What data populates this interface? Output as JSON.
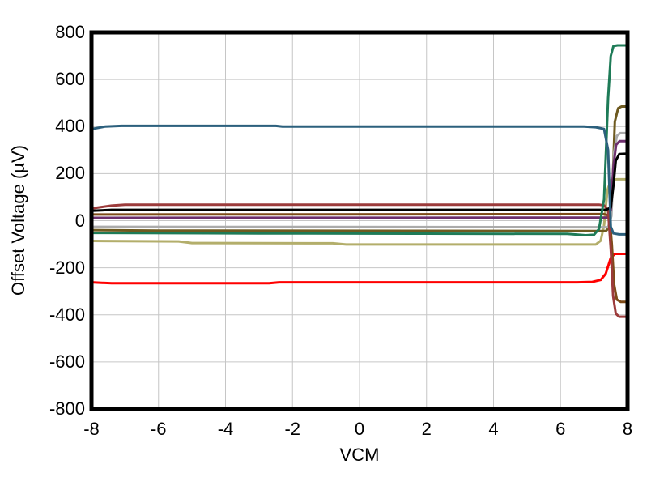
{
  "figure": {
    "background": "#ffffff"
  },
  "chart_data": {
    "type": "line",
    "xlabel": "VCM",
    "ylabel": "Offset Voltage (µV)",
    "xlim": [
      -8,
      8
    ],
    "ylim": [
      -800,
      800
    ],
    "x_ticks": [
      -8,
      -6,
      -4,
      -2,
      0,
      2,
      4,
      6,
      8
    ],
    "y_ticks": [
      800,
      600,
      400,
      200,
      0,
      -200,
      -400,
      -600,
      -800
    ],
    "grid": true,
    "grid_color": "#c6c6c6",
    "frame_color": "#000000",
    "legend": "none",
    "line_width": 3,
    "series": [
      {
        "name": "khaki",
        "color": "#b3ae6b",
        "flat_level": -95,
        "final_value": 176,
        "points": [
          [
            -8,
            -86
          ],
          [
            -5.4,
            -88
          ],
          [
            -5.0,
            -95
          ],
          [
            -0.8,
            -96
          ],
          [
            -0.4,
            -101
          ],
          [
            7.05,
            -101
          ],
          [
            7.2,
            -85
          ],
          [
            7.3,
            -20
          ],
          [
            7.4,
            130
          ],
          [
            7.5,
            172
          ],
          [
            7.65,
            176
          ],
          [
            8,
            176
          ]
        ]
      },
      {
        "name": "darkolive",
        "color": "#6e5a20",
        "flat_level": -42,
        "final_value": 485,
        "points": [
          [
            -8,
            -40
          ],
          [
            -6,
            -42
          ],
          [
            7.35,
            -44
          ],
          [
            7.48,
            -25
          ],
          [
            7.56,
            180
          ],
          [
            7.62,
            420
          ],
          [
            7.72,
            478
          ],
          [
            7.82,
            485
          ],
          [
            8,
            485
          ]
        ]
      },
      {
        "name": "gray",
        "color": "#ababab",
        "flat_level": -27,
        "final_value": 372,
        "points": [
          [
            -8,
            -26
          ],
          [
            7.42,
            -28
          ],
          [
            7.52,
            20
          ],
          [
            7.6,
            290
          ],
          [
            7.68,
            360
          ],
          [
            7.78,
            372
          ],
          [
            8,
            372
          ]
        ]
      },
      {
        "name": "purple",
        "color": "#6d2f6d",
        "flat_level": 13,
        "final_value": 338,
        "points": [
          [
            -8,
            12
          ],
          [
            7.4,
            13
          ],
          [
            7.5,
            45
          ],
          [
            7.58,
            230
          ],
          [
            7.66,
            322
          ],
          [
            7.76,
            338
          ],
          [
            8,
            338
          ]
        ]
      },
      {
        "name": "red",
        "color": "#ff0000",
        "flat_level": -265,
        "final_value": -141,
        "points": [
          [
            -8,
            -262
          ],
          [
            -7.4,
            -266
          ],
          [
            -2.7,
            -266
          ],
          [
            -2.4,
            -262
          ],
          [
            6.5,
            -262
          ],
          [
            6.95,
            -260
          ],
          [
            7.2,
            -252
          ],
          [
            7.35,
            -225
          ],
          [
            7.5,
            -158
          ],
          [
            7.62,
            -141
          ],
          [
            8,
            -141
          ]
        ]
      },
      {
        "name": "saddlebrown",
        "color": "#7e4b18",
        "flat_level": 28,
        "final_value": -345,
        "points": [
          [
            -8,
            26
          ],
          [
            7.3,
            28
          ],
          [
            7.46,
            22
          ],
          [
            7.53,
            -100
          ],
          [
            7.6,
            -270
          ],
          [
            7.68,
            -335
          ],
          [
            7.8,
            -345
          ],
          [
            8,
            -345
          ]
        ]
      },
      {
        "name": "brickred",
        "color": "#9c3b3b",
        "flat_level": 66,
        "final_value": -408,
        "points": [
          [
            -8,
            52
          ],
          [
            -7.7,
            58
          ],
          [
            -7.4,
            64
          ],
          [
            -7.0,
            68
          ],
          [
            7.15,
            68
          ],
          [
            7.3,
            65
          ],
          [
            7.42,
            45
          ],
          [
            7.5,
            -120
          ],
          [
            7.57,
            -320
          ],
          [
            7.65,
            -395
          ],
          [
            7.75,
            -408
          ],
          [
            8,
            -408
          ]
        ]
      },
      {
        "name": "black",
        "color": "#000000",
        "flat_level": 45,
        "final_value": 285,
        "points": [
          [
            -8,
            42
          ],
          [
            -7.4,
            46
          ],
          [
            7.35,
            46
          ],
          [
            7.5,
            55
          ],
          [
            7.58,
            150
          ],
          [
            7.65,
            255
          ],
          [
            7.75,
            283
          ],
          [
            8,
            285
          ]
        ]
      },
      {
        "name": "seagreen",
        "color": "#1e7b57",
        "flat_level": -55,
        "final_value": 745,
        "points": [
          [
            -8,
            -52
          ],
          [
            -3,
            -54
          ],
          [
            2,
            -55
          ],
          [
            6.2,
            -56
          ],
          [
            6.75,
            -62
          ],
          [
            7.0,
            -60
          ],
          [
            7.15,
            -35
          ],
          [
            7.3,
            90
          ],
          [
            7.42,
            520
          ],
          [
            7.5,
            700
          ],
          [
            7.58,
            742
          ],
          [
            7.7,
            745
          ],
          [
            8,
            745
          ]
        ]
      },
      {
        "name": "steelblue",
        "color": "#2c607d",
        "flat_level": 402,
        "final_value": -58,
        "points": [
          [
            -8,
            389
          ],
          [
            -7.6,
            400
          ],
          [
            -7.1,
            403
          ],
          [
            -2.5,
            403
          ],
          [
            -2.3,
            400
          ],
          [
            6.7,
            400
          ],
          [
            7.05,
            397
          ],
          [
            7.3,
            390
          ],
          [
            7.42,
            300
          ],
          [
            7.5,
            -25
          ],
          [
            7.58,
            -54
          ],
          [
            7.75,
            -58
          ],
          [
            8,
            -58
          ]
        ]
      }
    ]
  }
}
